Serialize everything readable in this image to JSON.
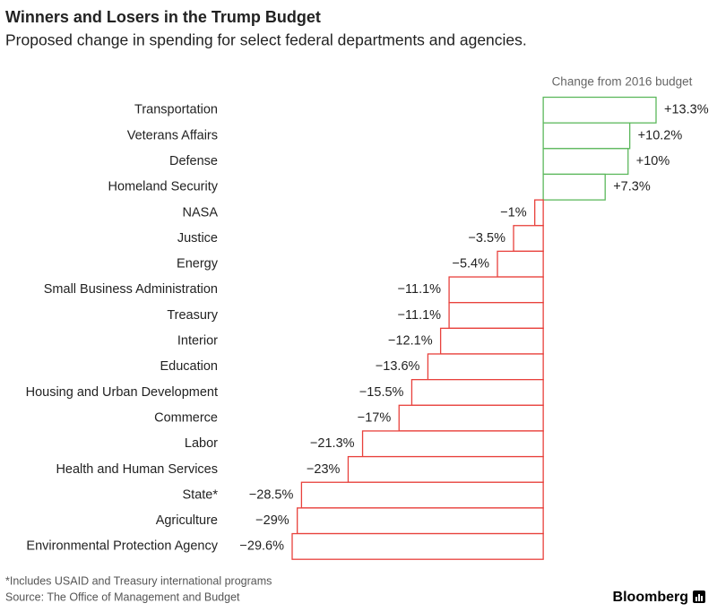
{
  "chart_data": {
    "type": "bar",
    "orientation": "horizontal",
    "title": "Winners and Losers in the Trump Budget",
    "subtitle": "Proposed change in spending for select federal departments and agencies.",
    "axis_label": "Change from 2016 budget",
    "categories": [
      "Transportation",
      "Veterans Affairs",
      "Defense",
      "Homeland Security",
      "NASA",
      "Justice",
      "Energy",
      "Small Business Administration",
      "Treasury",
      "Interior",
      "Education",
      "Housing and Urban Development",
      "Commerce",
      "Labor",
      "Health and Human Services",
      "State*",
      "Agriculture",
      "Environmental Protection Agency"
    ],
    "values": [
      13.3,
      10.2,
      10,
      7.3,
      -1,
      -3.5,
      -5.4,
      -11.1,
      -11.1,
      -12.1,
      -13.6,
      -15.5,
      -17,
      -21.3,
      -23,
      -28.5,
      -29,
      -29.6
    ],
    "value_labels": [
      "+13.3%",
      "+10.2%",
      "+10%",
      "+7.3%",
      "−1%",
      "−3.5%",
      "−5.4%",
      "−11.1%",
      "−11.1%",
      "−12.1%",
      "−13.6%",
      "−15.5%",
      "−17%",
      "−21.3%",
      "−23%",
      "−28.5%",
      "−29%",
      "−29.6%"
    ],
    "positive_color": "#5cb85c",
    "negative_color": "#e8413c",
    "footnote": "*Includes USAID and Treasury international programs",
    "source": "Source: The Office of Management and Budget",
    "brand": "Bloomberg"
  }
}
